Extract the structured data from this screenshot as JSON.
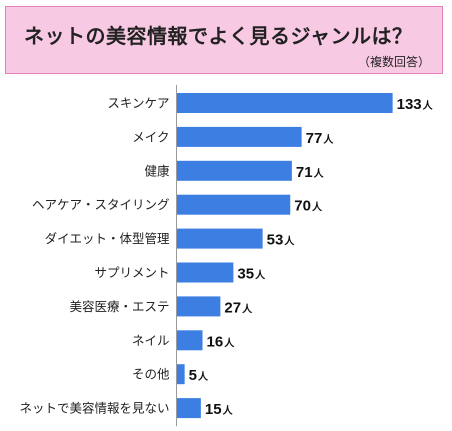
{
  "header": {
    "title": "ネットの美容情報でよく見るジャンルは？",
    "subtitle": "（複数回答）"
  },
  "chart_data": {
    "type": "bar",
    "orientation": "horizontal",
    "title": "ネットの美容情報でよく見るジャンルは？",
    "subtitle": "（複数回答）",
    "categories": [
      "スキンケア",
      "メイク",
      "健康",
      "ヘアケア・スタイリング",
      "ダイエット・体型管理",
      "サプリメント",
      "美容医療・エステ",
      "ネイル",
      "その他",
      "ネットで美容情報を見ない"
    ],
    "values": [
      133,
      77,
      71,
      70,
      53,
      35,
      27,
      16,
      5,
      15
    ],
    "unit": "人",
    "bar_color": "#3d7ee3"
  }
}
